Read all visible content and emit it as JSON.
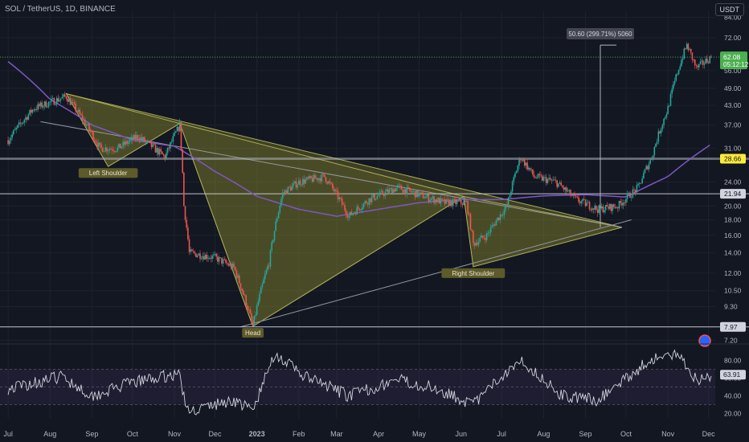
{
  "header": {
    "symbol_title": "SOL / TetherUS, 1D, BINANCE",
    "currency_button": "USDT"
  },
  "colors": {
    "background": "#131722",
    "up_candle": "#26a69a",
    "down_candle": "#ef5350",
    "ma_line": "#7e57c2",
    "pattern_fill": "#8b8b2f",
    "pattern_stroke": "#b4b45a",
    "axis_text": "#b2b5be",
    "last_price_bg": "#4caf50",
    "highlight_price_bg": "#ffeb3b"
  },
  "chart_data": {
    "type": "candlestick",
    "price_axis": {
      "scale": "log",
      "tick_labels": [
        "84.00",
        "72.00",
        "62.08",
        "56.00",
        "49.00",
        "43.00",
        "37.00",
        "31.00",
        "28.66",
        "24.00",
        "21.94",
        "20.00",
        "18.00",
        "16.00",
        "14.00",
        "12.00",
        "10.50",
        "9.30",
        "7.97",
        "7.20"
      ],
      "range": [
        7.0,
        88.0
      ]
    },
    "time_axis": {
      "tick_labels": [
        "Jul",
        "Aug",
        "Sep",
        "Oct",
        "Nov",
        "Dec",
        "2023",
        "Feb",
        "Mar",
        "Apr",
        "May",
        "Jun",
        "Jul",
        "Aug",
        "Sep",
        "Oct",
        "Nov",
        "Dec"
      ]
    },
    "price_path_anchors": [
      {
        "date": "2022-07-01",
        "price": 33
      },
      {
        "date": "2022-07-20",
        "price": 42
      },
      {
        "date": "2022-08-13",
        "price": 46
      },
      {
        "date": "2022-09-07",
        "price": 31
      },
      {
        "date": "2022-09-20",
        "price": 31
      },
      {
        "date": "2022-10-05",
        "price": 34
      },
      {
        "date": "2022-10-25",
        "price": 29
      },
      {
        "date": "2022-11-05",
        "price": 37
      },
      {
        "date": "2022-11-08",
        "price": 20
      },
      {
        "date": "2022-11-12",
        "price": 14
      },
      {
        "date": "2022-12-01",
        "price": 13.5
      },
      {
        "date": "2022-12-15",
        "price": 12.5
      },
      {
        "date": "2022-12-29",
        "price": 8.0
      },
      {
        "date": "2023-01-10",
        "price": 13
      },
      {
        "date": "2023-01-20",
        "price": 22
      },
      {
        "date": "2023-02-01",
        "price": 24
      },
      {
        "date": "2023-02-20",
        "price": 25
      },
      {
        "date": "2023-03-10",
        "price": 18.5
      },
      {
        "date": "2023-03-25",
        "price": 21
      },
      {
        "date": "2023-04-15",
        "price": 23
      },
      {
        "date": "2023-05-05",
        "price": 21.5
      },
      {
        "date": "2023-05-20",
        "price": 20.5
      },
      {
        "date": "2023-06-05",
        "price": 20.5
      },
      {
        "date": "2023-06-10",
        "price": 15
      },
      {
        "date": "2023-06-20",
        "price": 16
      },
      {
        "date": "2023-07-05",
        "price": 20
      },
      {
        "date": "2023-07-15",
        "price": 29
      },
      {
        "date": "2023-07-25",
        "price": 25
      },
      {
        "date": "2023-08-10",
        "price": 24
      },
      {
        "date": "2023-08-25",
        "price": 21
      },
      {
        "date": "2023-09-10",
        "price": 19.5
      },
      {
        "date": "2023-09-25",
        "price": 20
      },
      {
        "date": "2023-10-10",
        "price": 23
      },
      {
        "date": "2023-10-20",
        "price": 29
      },
      {
        "date": "2023-11-01",
        "price": 42
      },
      {
        "date": "2023-11-10",
        "price": 59
      },
      {
        "date": "2023-11-15",
        "price": 68
      },
      {
        "date": "2023-11-22",
        "price": 57
      },
      {
        "date": "2023-12-03",
        "price": 62
      }
    ],
    "moving_average_anchors": [
      {
        "date": "2022-07-01",
        "price": 60
      },
      {
        "date": "2022-08-01",
        "price": 45
      },
      {
        "date": "2022-09-01",
        "price": 37
      },
      {
        "date": "2022-10-01",
        "price": 33
      },
      {
        "date": "2022-11-01",
        "price": 31.5
      },
      {
        "date": "2022-12-01",
        "price": 26
      },
      {
        "date": "2023-01-01",
        "price": 21.5
      },
      {
        "date": "2023-02-01",
        "price": 19.5
      },
      {
        "date": "2023-03-01",
        "price": 18.5
      },
      {
        "date": "2023-04-01",
        "price": 19.5
      },
      {
        "date": "2023-05-01",
        "price": 20.5
      },
      {
        "date": "2023-06-01",
        "price": 21
      },
      {
        "date": "2023-07-01",
        "price": 21
      },
      {
        "date": "2023-08-01",
        "price": 21.6
      },
      {
        "date": "2023-09-01",
        "price": 21.8
      },
      {
        "date": "2023-10-01",
        "price": 21.4
      },
      {
        "date": "2023-11-01",
        "price": 25
      },
      {
        "date": "2023-12-03",
        "price": 32
      }
    ],
    "horizontal_lines": [
      {
        "price": 28.66,
        "label": "28.66",
        "highlight": true
      },
      {
        "price": 21.94,
        "label": "21.94",
        "highlight": false
      },
      {
        "price": 7.97,
        "label": "7.97",
        "highlight": false
      }
    ],
    "last_price": {
      "value": "62.08",
      "countdown": "05:12:12"
    },
    "measure": {
      "label": "50.60 (299.71%) 5060",
      "from_date": "2023-09-12",
      "from_price": 17,
      "to_price": 68
    },
    "pattern_annotations": [
      {
        "label": "Left Shoulder",
        "date": "2022-09-13",
        "price": 27
      },
      {
        "label": "Head",
        "date": "2022-12-29",
        "price": 8.0
      },
      {
        "label": "Right Shoulder",
        "date": "2023-06-10",
        "price": 12.6
      }
    ],
    "pattern_triangles": [
      {
        "points": [
          {
            "date": "2022-08-13",
            "price": 47
          },
          {
            "date": "2022-09-13",
            "price": 27
          },
          {
            "date": "2022-11-05",
            "price": 37.5
          }
        ]
      },
      {
        "points": [
          {
            "date": "2022-11-05",
            "price": 37.5
          },
          {
            "date": "2022-12-29",
            "price": 8.0
          },
          {
            "date": "2023-06-03",
            "price": 21.5
          }
        ]
      },
      {
        "points": [
          {
            "date": "2022-08-13",
            "price": 47
          },
          {
            "date": "2023-09-28",
            "price": 17
          }
        ]
      },
      {
        "points": [
          {
            "date": "2023-06-03",
            "price": 21.5
          },
          {
            "date": "2023-06-10",
            "price": 12.6
          },
          {
            "date": "2023-09-28",
            "price": 17
          }
        ]
      }
    ],
    "neckline": [
      {
        "date": "2022-07-25",
        "price": 38
      },
      {
        "date": "2023-09-28",
        "price": 17
      }
    ],
    "support_line": [
      {
        "date": "2022-12-20",
        "price": 7.97
      },
      {
        "date": "2023-10-05",
        "price": 18
      }
    ],
    "rsi": {
      "tick_labels": [
        "80.00",
        "63.91",
        "60.00",
        "40.00",
        "20.00"
      ],
      "last_value": "63.91",
      "band": [
        30,
        70
      ],
      "anchors": [
        {
          "date": "2022-07-01",
          "v": 48
        },
        {
          "date": "2022-08-10",
          "v": 62
        },
        {
          "date": "2022-09-01",
          "v": 40
        },
        {
          "date": "2022-10-01",
          "v": 55
        },
        {
          "date": "2022-11-05",
          "v": 65
        },
        {
          "date": "2022-11-10",
          "v": 22
        },
        {
          "date": "2022-12-15",
          "v": 35
        },
        {
          "date": "2022-12-29",
          "v": 23
        },
        {
          "date": "2023-01-14",
          "v": 88
        },
        {
          "date": "2023-02-05",
          "v": 62
        },
        {
          "date": "2023-03-10",
          "v": 40
        },
        {
          "date": "2023-04-15",
          "v": 58
        },
        {
          "date": "2023-05-15",
          "v": 48
        },
        {
          "date": "2023-06-10",
          "v": 30
        },
        {
          "date": "2023-07-14",
          "v": 82
        },
        {
          "date": "2023-08-15",
          "v": 40
        },
        {
          "date": "2023-09-10",
          "v": 35
        },
        {
          "date": "2023-10-20",
          "v": 82
        },
        {
          "date": "2023-11-10",
          "v": 86
        },
        {
          "date": "2023-11-22",
          "v": 58
        },
        {
          "date": "2023-12-03",
          "v": 63.91
        }
      ]
    }
  }
}
